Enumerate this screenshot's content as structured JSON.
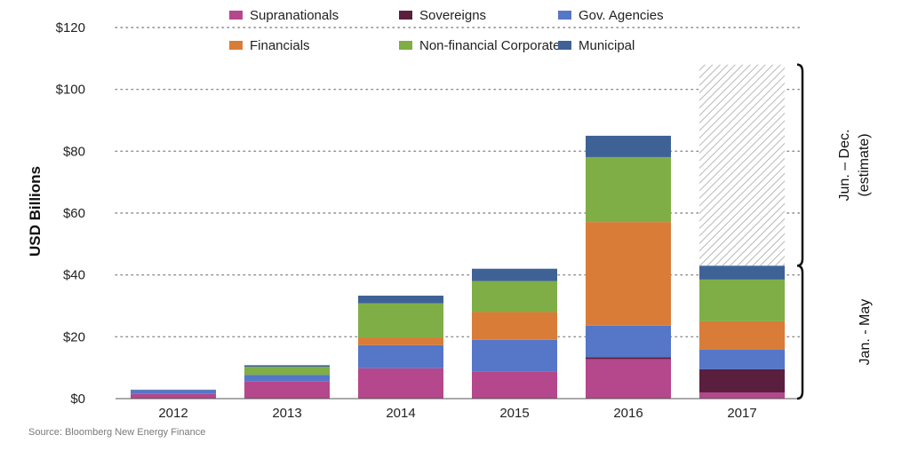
{
  "chart_data": {
    "type": "bar",
    "stacked": true,
    "categories": [
      "2012",
      "2013",
      "2014",
      "2015",
      "2016",
      "2017"
    ],
    "series": [
      {
        "name": "Supranationals",
        "color": "#b5478c",
        "values": [
          1.5,
          5.5,
          9.8,
          8.8,
          12.8,
          2.0
        ]
      },
      {
        "name": "Sovereigns",
        "color": "#5a1f3e",
        "values": [
          0,
          0,
          0,
          0,
          0.6,
          7.5
        ]
      },
      {
        "name": "Gov. Agencies",
        "color": "#5676c8",
        "values": [
          1.3,
          2.2,
          7.5,
          10.2,
          10.2,
          6.3
        ]
      },
      {
        "name": "Financials",
        "color": "#d97c38",
        "values": [
          0,
          0,
          2.5,
          9.0,
          33.5,
          9.2
        ]
      },
      {
        "name": "Non-financial Corporates",
        "color": "#7fae46",
        "values": [
          0,
          2.6,
          11.0,
          10.0,
          21.0,
          13.5
        ]
      },
      {
        "name": "Municipal",
        "color": "#3f6296",
        "values": [
          0.1,
          0.5,
          2.5,
          4.0,
          6.9,
          4.5
        ]
      }
    ],
    "estimate": {
      "category": "2017",
      "from": 43,
      "to": 108
    },
    "ylabel": "USD  Billions",
    "ylim": [
      0,
      120
    ],
    "yticks": [
      "$0",
      "$20",
      "$40",
      "$60",
      "$80",
      "$100",
      "$120"
    ],
    "ytick_values": [
      0,
      20,
      40,
      60,
      80,
      100,
      120
    ],
    "grid": true,
    "legend_position": "top",
    "brackets": [
      {
        "label": "Jan. - May",
        "from": 0,
        "to": 43
      },
      {
        "label_lines": [
          "Jun. – Dec.",
          "(estimate)"
        ],
        "from": 43,
        "to": 108
      }
    ]
  },
  "source": "Source: Bloomberg New Energy Finance"
}
